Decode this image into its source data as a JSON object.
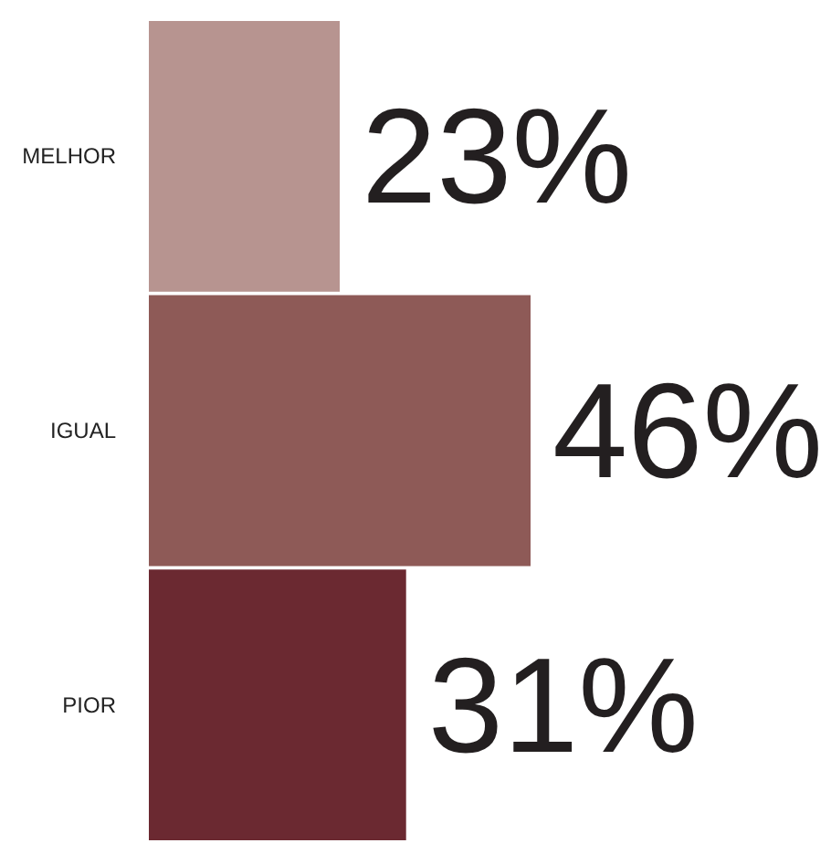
{
  "chart_data": {
    "type": "bar",
    "orientation": "horizontal",
    "categories": [
      "MELHOR",
      "IGUAL",
      "PIOR"
    ],
    "values": [
      23,
      46,
      31
    ],
    "colors": [
      "#b79490",
      "#8e5a57",
      "#6b2931"
    ],
    "value_labels": [
      "23%",
      "46%",
      "31%"
    ],
    "tick_labels": "y"
  }
}
